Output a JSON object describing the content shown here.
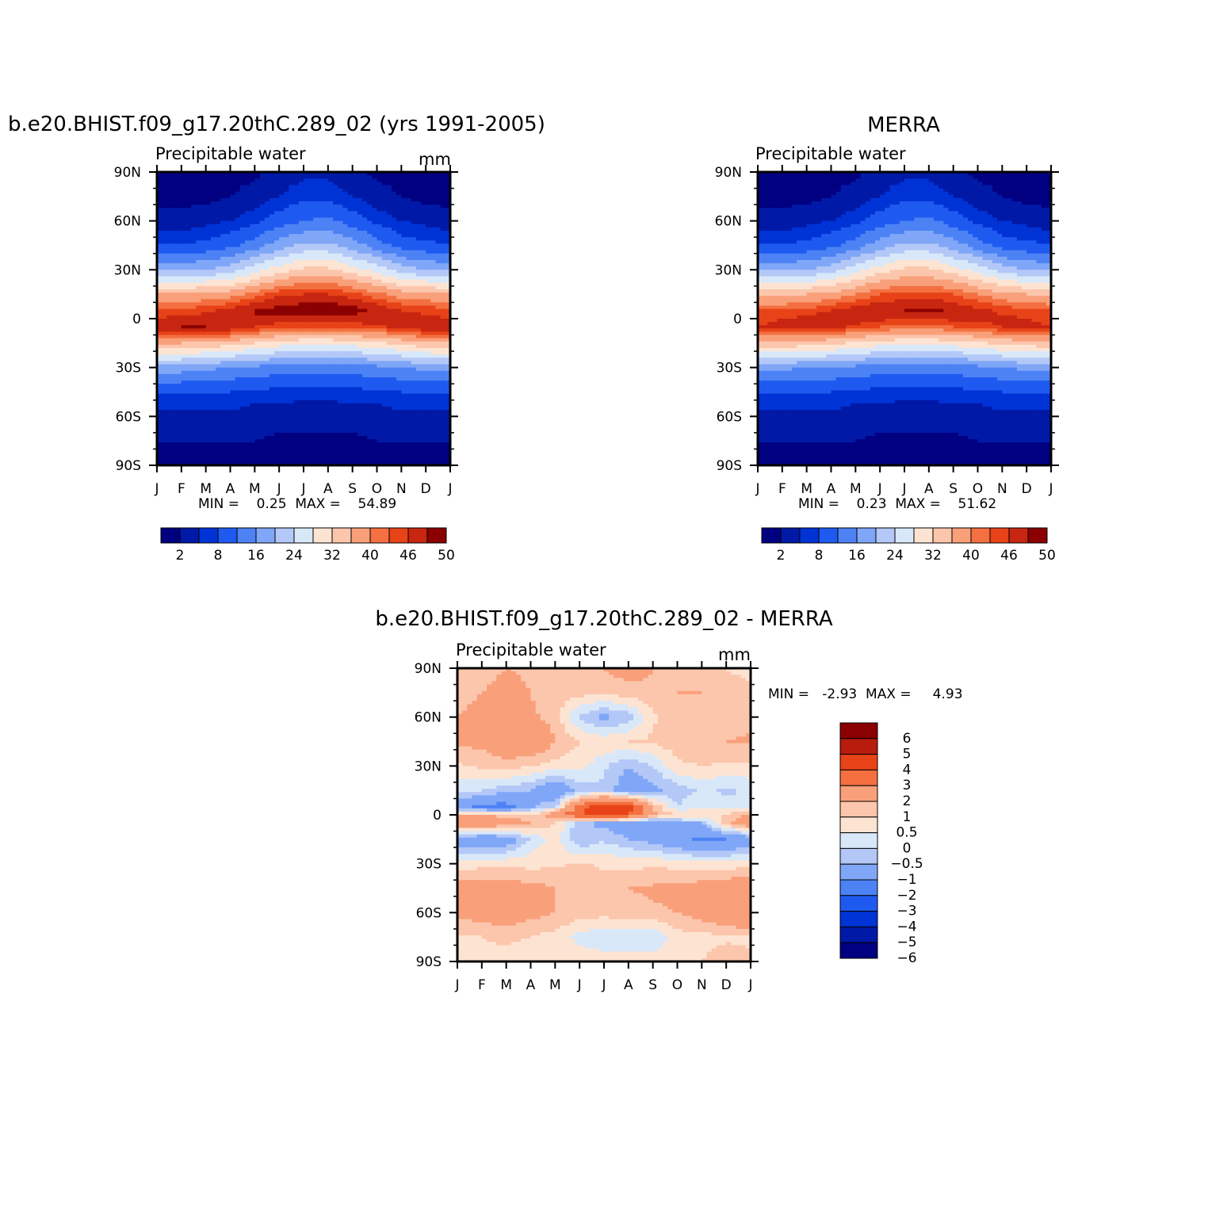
{
  "palettes": {
    "field": [
      "#000080",
      "#0019a6",
      "#0033d6",
      "#1f5af0",
      "#4d82f5",
      "#80a6f7",
      "#b3c8f7",
      "#d9e8f9",
      "#fde4d2",
      "#fcc6ac",
      "#f9a07a",
      "#f47040",
      "#e84318",
      "#c82610",
      "#8b0000"
    ],
    "diff": [
      "#000080",
      "#0019a6",
      "#0033d6",
      "#1f5af0",
      "#4d82f5",
      "#80a6f7",
      "#b3c8f7",
      "#d9e8f9",
      "#fde4d2",
      "#fcc6ac",
      "#f9a07a",
      "#f47040",
      "#e84318",
      "#b81c0c",
      "#8b0000"
    ]
  },
  "chart_data": [
    {
      "id": "model",
      "type": "heatmap",
      "title": "b.e20.BHIST.f09_g17.20thC.289_02 (yrs 1991-2005)",
      "subtitle": "Precipitable water",
      "units": "mm",
      "x_tick_labels": [
        "J",
        "F",
        "M",
        "A",
        "M",
        "J",
        "J",
        "A",
        "S",
        "O",
        "N",
        "D",
        "J"
      ],
      "y_tick_labels": [
        "90N",
        "60N",
        "30N",
        "0",
        "30S",
        "60S",
        "90S"
      ],
      "ylim": [
        -90,
        90
      ],
      "stats": "MIN =    0.25  MAX =    54.89",
      "min": 0.25,
      "max": 54.89,
      "colorbar": {
        "levels": [
          0,
          2,
          5,
          8,
          12,
          16,
          20,
          24,
          28,
          32,
          36,
          40,
          43,
          46,
          50,
          100
        ],
        "labels": [
          "2",
          "8",
          "16",
          "24",
          "32",
          "40",
          "46",
          "50"
        ]
      },
      "lat_grid": [
        -90,
        -75,
        -60,
        -45,
        -30,
        -15,
        -5,
        0,
        5,
        15,
        30,
        45,
        60,
        75,
        90
      ],
      "months": [
        "Jan",
        "Feb",
        "Mar",
        "Apr",
        "May",
        "Jun",
        "Jul",
        "Aug",
        "Sep",
        "Oct",
        "Nov",
        "Dec",
        "Jan"
      ],
      "values": [
        [
          1,
          2,
          4,
          8,
          18,
          36,
          49,
          46,
          44,
          36,
          19,
          8,
          3,
          1,
          0.5
        ],
        [
          1,
          2,
          4,
          8,
          18,
          36,
          50,
          47,
          44,
          36,
          19,
          8,
          3,
          1,
          0.5
        ],
        [
          1,
          2,
          4,
          8,
          17,
          35,
          50,
          48,
          45,
          37,
          20,
          9,
          4,
          1,
          0.5
        ],
        [
          1,
          2,
          4,
          8,
          16,
          34,
          49,
          50,
          47,
          38,
          22,
          11,
          5,
          2,
          1
        ],
        [
          1,
          2,
          3,
          7,
          15,
          32,
          46,
          50,
          50,
          41,
          26,
          14,
          7,
          3,
          1.5
        ],
        [
          0.5,
          1.5,
          3,
          7,
          14,
          30,
          44,
          48,
          52,
          45,
          30,
          18,
          10,
          5,
          3
        ],
        [
          0.5,
          1.5,
          3,
          6,
          14,
          29,
          43,
          47,
          53,
          46,
          33,
          21,
          12,
          7,
          4
        ],
        [
          0.5,
          1.5,
          3,
          6,
          14,
          29,
          43,
          47,
          54,
          46,
          33,
          21,
          13,
          7,
          4
        ],
        [
          0.5,
          1.5,
          3,
          7,
          14,
          30,
          44,
          48,
          52,
          44,
          30,
          18,
          10,
          5,
          2.5
        ],
        [
          1,
          2,
          3,
          7,
          15,
          31,
          45,
          49,
          49,
          41,
          26,
          14,
          7,
          3,
          1.5
        ],
        [
          1,
          2,
          4,
          8,
          16,
          33,
          47,
          49,
          46,
          38,
          22,
          10,
          5,
          2,
          1
        ],
        [
          1,
          2,
          4,
          8,
          17,
          35,
          49,
          47,
          45,
          37,
          20,
          9,
          4,
          1,
          0.5
        ],
        [
          1,
          2,
          4,
          8,
          18,
          36,
          49,
          46,
          44,
          36,
          19,
          8,
          3,
          1,
          0.5
        ]
      ]
    },
    {
      "id": "obs",
      "type": "heatmap",
      "title": "MERRA",
      "subtitle": "Precipitable water",
      "units": "",
      "x_tick_labels": [
        "J",
        "F",
        "M",
        "A",
        "M",
        "J",
        "J",
        "A",
        "S",
        "O",
        "N",
        "D",
        "J"
      ],
      "y_tick_labels": [
        "90N",
        "60N",
        "30N",
        "0",
        "30S",
        "60S",
        "90S"
      ],
      "ylim": [
        -90,
        90
      ],
      "stats": "MIN =    0.23  MAX =    51.62",
      "min": 0.23,
      "max": 51.62,
      "colorbar": {
        "levels": [
          0,
          2,
          5,
          8,
          12,
          16,
          20,
          24,
          28,
          32,
          36,
          40,
          43,
          46,
          50,
          100
        ],
        "labels": [
          "2",
          "8",
          "16",
          "24",
          "32",
          "40",
          "46",
          "50"
        ]
      },
      "lat_grid": [
        -90,
        -75,
        -60,
        -45,
        -30,
        -15,
        -5,
        0,
        5,
        15,
        30,
        45,
        60,
        75,
        90
      ],
      "months": [
        "Jan",
        "Feb",
        "Mar",
        "Apr",
        "May",
        "Jun",
        "Jul",
        "Aug",
        "Sep",
        "Oct",
        "Nov",
        "Dec",
        "Jan"
      ],
      "values": [
        [
          1,
          2,
          4,
          8,
          17,
          35,
          46,
          45,
          43,
          35,
          19,
          8,
          3,
          1,
          0.5
        ],
        [
          1,
          2,
          4,
          8,
          17,
          35,
          47,
          46,
          43,
          35,
          19,
          8,
          3,
          1,
          0.5
        ],
        [
          1,
          2,
          4,
          8,
          16,
          34,
          48,
          47,
          44,
          36,
          20,
          9,
          4,
          1,
          0.5
        ],
        [
          1,
          2,
          4,
          8,
          16,
          33,
          47,
          48,
          46,
          37,
          22,
          11,
          5,
          2,
          1
        ],
        [
          1,
          2,
          3,
          7,
          15,
          31,
          45,
          48,
          48,
          40,
          26,
          14,
          7,
          3,
          1.5
        ],
        [
          0.5,
          1.5,
          3,
          7,
          14,
          30,
          43,
          47,
          49,
          43,
          30,
          18,
          10,
          5,
          3
        ],
        [
          0.5,
          1.5,
          3,
          6,
          14,
          29,
          42,
          46,
          50,
          44,
          33,
          21,
          12,
          7,
          4
        ],
        [
          0.5,
          1.5,
          3,
          6,
          14,
          29,
          42,
          46,
          51,
          44,
          33,
          21,
          13,
          7,
          4
        ],
        [
          0.5,
          1.5,
          3,
          7,
          14,
          30,
          43,
          47,
          49,
          43,
          30,
          18,
          10,
          5,
          2.5
        ],
        [
          1,
          2,
          3,
          7,
          15,
          31,
          44,
          47,
          47,
          40,
          26,
          14,
          7,
          3,
          1.5
        ],
        [
          1,
          2,
          4,
          8,
          16,
          33,
          46,
          47,
          45,
          37,
          22,
          10,
          5,
          2,
          1
        ],
        [
          1,
          2,
          4,
          8,
          17,
          34,
          47,
          46,
          44,
          36,
          20,
          9,
          4,
          1,
          0.5
        ],
        [
          1,
          2,
          4,
          8,
          17,
          35,
          46,
          45,
          43,
          35,
          19,
          8,
          3,
          1,
          0.5
        ]
      ]
    },
    {
      "id": "diff",
      "type": "heatmap",
      "title": "b.e20.BHIST.f09_g17.20thC.289_02 - MERRA",
      "subtitle": "Precipitable water",
      "units": "mm",
      "x_tick_labels": [
        "J",
        "F",
        "M",
        "A",
        "M",
        "J",
        "J",
        "A",
        "S",
        "O",
        "N",
        "D",
        "J"
      ],
      "y_tick_labels": [
        "90N",
        "60N",
        "30N",
        "0",
        "30S",
        "60S",
        "90S"
      ],
      "ylim": [
        -90,
        90
      ],
      "stats": "MIN =   -2.93  MAX =     4.93",
      "min": -2.93,
      "max": 4.93,
      "colorbar": {
        "levels": [
          -100,
          -6,
          -5,
          -4,
          -3,
          -2,
          -1,
          -0.5,
          0,
          0.5,
          1,
          2,
          3,
          4,
          5,
          6
        ],
        "labels": [
          "6",
          "5",
          "4",
          "3",
          "2",
          "1",
          "0.5",
          "0",
          "-0.5",
          "-1",
          "-2",
          "-3",
          "-4",
          "-5",
          "-6"
        ]
      },
      "lat_grid": [
        -90,
        -75,
        -60,
        -45,
        -30,
        -15,
        -5,
        0,
        5,
        15,
        30,
        45,
        60,
        75,
        90
      ],
      "months": [
        "Jan",
        "Feb",
        "Mar",
        "Apr",
        "May",
        "Jun",
        "Jul",
        "Aug",
        "Sep",
        "Oct",
        "Nov",
        "Dec",
        "Jan"
      ],
      "values": [
        [
          0.3,
          0.4,
          1.2,
          1.3,
          0.2,
          -1.5,
          1.8,
          1.0,
          -1.6,
          -0.3,
          0.4,
          1.1,
          1.0,
          0.8,
          0.6
        ],
        [
          0.4,
          0.5,
          1.3,
          1.4,
          0.3,
          -1.8,
          2.0,
          0.9,
          -2.2,
          -0.5,
          0.6,
          1.2,
          1.2,
          1.0,
          0.8
        ],
        [
          0.3,
          0.6,
          1.5,
          1.3,
          0.4,
          -1.6,
          1.5,
          0.8,
          -2.4,
          -0.8,
          0.8,
          1.5,
          1.4,
          1.2,
          1.0
        ],
        [
          0.2,
          0.5,
          1.2,
          1.2,
          0.3,
          -0.4,
          1.0,
          0.5,
          -1.2,
          -1.0,
          0.5,
          1.8,
          1.1,
          1.0,
          0.9
        ],
        [
          0.3,
          0.3,
          1.0,
          1.0,
          0.4,
          0.2,
          0.5,
          1.5,
          -0.5,
          -1.8,
          0.3,
          1.0,
          0.8,
          0.7,
          0.6
        ],
        [
          0.4,
          -0.2,
          0.8,
          0.9,
          0.6,
          -1.0,
          -0.8,
          3.0,
          2.5,
          -0.8,
          0.2,
          0.5,
          -0.6,
          0.7,
          0.8
        ],
        [
          0.3,
          -0.4,
          0.7,
          0.8,
          0.4,
          -0.6,
          -1.2,
          3.6,
          3.8,
          -0.6,
          -0.4,
          0.4,
          -1.2,
          0.6,
          1.0
        ],
        [
          0.2,
          -0.3,
          0.8,
          1.0,
          0.3,
          -1.0,
          -1.5,
          3.0,
          3.5,
          -1.5,
          -1.0,
          0.5,
          -0.8,
          0.8,
          1.3
        ],
        [
          0.3,
          -0.5,
          0.9,
          1.1,
          0.4,
          -1.3,
          -1.8,
          1.2,
          1.0,
          -1.2,
          -0.5,
          0.6,
          0.4,
          0.9,
          1.0
        ],
        [
          0.4,
          0.3,
          1.0,
          1.2,
          0.3,
          -1.8,
          -1.2,
          0.5,
          -0.5,
          -0.8,
          0.4,
          0.8,
          0.9,
          1.0,
          0.8
        ],
        [
          0.5,
          0.3,
          1.3,
          1.3,
          0.2,
          -2.1,
          -1.0,
          0.4,
          0.0,
          -0.4,
          0.5,
          0.9,
          1.0,
          1.0,
          0.6
        ],
        [
          0.8,
          0.4,
          1.8,
          1.5,
          0.2,
          -2.0,
          0.8,
          0.6,
          -0.3,
          -0.6,
          0.4,
          1.0,
          0.8,
          0.6,
          0.5
        ],
        [
          0.6,
          0.4,
          2.0,
          1.6,
          0.3,
          -1.6,
          1.8,
          1.0,
          -0.5,
          -0.4,
          0.4,
          1.1,
          0.8,
          0.6,
          0.4
        ]
      ]
    }
  ]
}
